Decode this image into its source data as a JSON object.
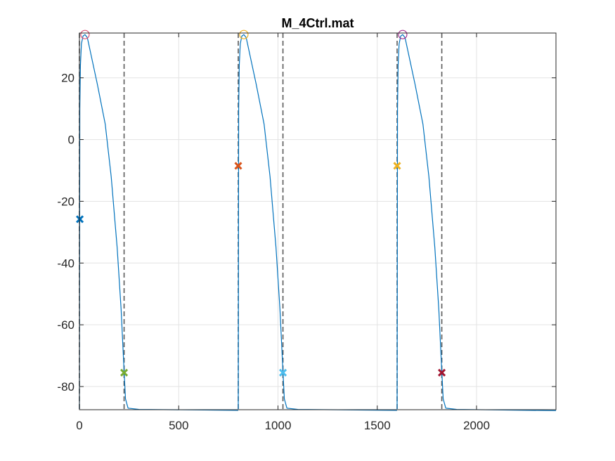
{
  "chart_data": {
    "type": "line",
    "title": "M_4Ctrl.mat",
    "xlabel": "",
    "ylabel": "",
    "xlim": [
      0,
      2400
    ],
    "ylim": [
      -87.5,
      34.5
    ],
    "xticks": [
      0,
      500,
      1000,
      1500,
      2000
    ],
    "xtick_labels": [
      "0",
      "500",
      "1000",
      "1500",
      "2000"
    ],
    "yticks": [
      20,
      0,
      -20,
      -40,
      -60,
      -80
    ],
    "ytick_labels": [
      "20",
      "0",
      "-20",
      "-40",
      "-60",
      "-80"
    ],
    "grid": true,
    "legend": "none",
    "trace_color": "#0072bd",
    "vline_color": "#595959",
    "beats": [
      {
        "start": 0,
        "points": [
          [
            0,
            -87.3
          ],
          [
            2,
            10
          ],
          [
            5,
            24
          ],
          [
            10,
            31
          ],
          [
            18,
            33.5
          ],
          [
            28,
            34
          ],
          [
            40,
            33
          ],
          [
            60,
            27
          ],
          [
            90,
            18
          ],
          [
            130,
            5
          ],
          [
            160,
            -12
          ],
          [
            190,
            -35
          ],
          [
            210,
            -55
          ],
          [
            225,
            -75
          ],
          [
            232,
            -84
          ],
          [
            245,
            -87
          ],
          [
            300,
            -87.4
          ],
          [
            799.5,
            -87.7
          ]
        ]
      },
      {
        "start": 800,
        "points": [
          [
            800,
            -87.3
          ],
          [
            802,
            10
          ],
          [
            805,
            24
          ],
          [
            810,
            31
          ],
          [
            818,
            33.5
          ],
          [
            828,
            34
          ],
          [
            840,
            33
          ],
          [
            860,
            27
          ],
          [
            890,
            18
          ],
          [
            930,
            5
          ],
          [
            960,
            -12
          ],
          [
            990,
            -35
          ],
          [
            1010,
            -55
          ],
          [
            1025,
            -75
          ],
          [
            1032,
            -84
          ],
          [
            1045,
            -87
          ],
          [
            1100,
            -87.4
          ],
          [
            1599.5,
            -87.7
          ]
        ]
      },
      {
        "start": 1600,
        "points": [
          [
            1600,
            -87.3
          ],
          [
            1602,
            10
          ],
          [
            1605,
            24
          ],
          [
            1610,
            31
          ],
          [
            1618,
            33.5
          ],
          [
            1628,
            34
          ],
          [
            1640,
            33
          ],
          [
            1660,
            27
          ],
          [
            1690,
            18
          ],
          [
            1730,
            5
          ],
          [
            1760,
            -12
          ],
          [
            1790,
            -35
          ],
          [
            1810,
            -55
          ],
          [
            1825,
            -75
          ],
          [
            1832,
            -84
          ],
          [
            1845,
            -87
          ],
          [
            1900,
            -87.4
          ],
          [
            2400,
            -87.8
          ]
        ]
      }
    ],
    "vertical_lines": [
      {
        "x": 0,
        "kind": "onset"
      },
      {
        "x": 225,
        "kind": "repolarization"
      },
      {
        "x": 800,
        "kind": "onset"
      },
      {
        "x": 1025,
        "kind": "repolarization"
      },
      {
        "x": 1600,
        "kind": "onset"
      },
      {
        "x": 1825,
        "kind": "repolarization"
      }
    ],
    "peak_markers": [
      {
        "x": 28,
        "y": 34,
        "color": "#d95377"
      },
      {
        "x": 828,
        "y": 34,
        "color": "#edb120"
      },
      {
        "x": 1628,
        "y": 34,
        "color": "#a2308e"
      }
    ],
    "cross_markers": [
      {
        "x": 2,
        "y": -25.8,
        "color": "#0072bd"
      },
      {
        "x": 800,
        "y": -8.5,
        "color": "#d95319"
      },
      {
        "x": 1600,
        "y": -8.5,
        "color": "#edb120"
      },
      {
        "x": 225,
        "y": -75.5,
        "color": "#77ac30"
      },
      {
        "x": 1025,
        "y": -75.5,
        "color": "#4dbeee"
      },
      {
        "x": 1825,
        "y": -75.5,
        "color": "#a2142f"
      }
    ]
  }
}
